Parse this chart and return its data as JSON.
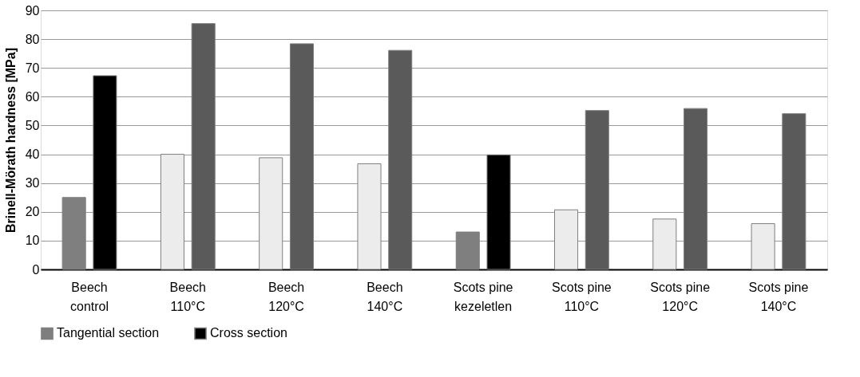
{
  "chart_data": {
    "type": "bar",
    "ylabel": "Brinell-Mörath hardness [MPa]",
    "categories": [
      "Beech control",
      "Beech 110°C",
      "Beech 120°C",
      "Beech 140°C",
      "Scots pine kezeletlen",
      "Scots pine 110°C",
      "Scots pine 120°C",
      "Scots pine 140°C"
    ],
    "series": [
      {
        "name": "Tangential section",
        "color": "#7f7f7f",
        "colors": [
          "#7f7f7f",
          "#ececec",
          "#ececec",
          "#ececec",
          "#7f7f7f",
          "#ececec",
          "#ececec",
          "#ececec"
        ],
        "values": [
          25,
          40,
          38.8,
          36.7,
          13,
          20.7,
          17.5,
          15.9
        ]
      },
      {
        "name": "Cross section",
        "color": "#000000",
        "colors": [
          "#000000",
          "#5a5a5a",
          "#5a5a5a",
          "#5a5a5a",
          "#000000",
          "#5a5a5a",
          "#5a5a5a",
          "#5a5a5a"
        ],
        "values": [
          67.3,
          85.4,
          78.4,
          76.1,
          39.8,
          55.2,
          55.9,
          54.1
        ]
      }
    ],
    "ylim": [
      0,
      90
    ],
    "yticks": [
      0,
      10,
      20,
      30,
      40,
      50,
      60,
      70,
      80,
      90
    ],
    "grid": "y",
    "legend": "bottom"
  }
}
